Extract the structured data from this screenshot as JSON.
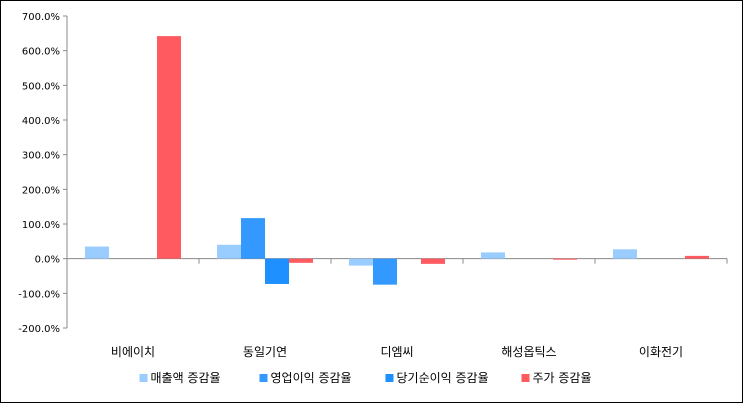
{
  "chart_data": {
    "type": "bar",
    "categories": [
      "비에이치",
      "동일기연",
      "디엠씨",
      "해성옵틱스",
      "이화전기"
    ],
    "series": [
      {
        "name": "매출액 증감율",
        "color": "#99ccff",
        "values": [
          35,
          40,
          -20,
          18,
          27
        ]
      },
      {
        "name": "영업이익 증감율",
        "color": "#3399ff",
        "values": [
          0,
          117,
          -75,
          0,
          0
        ]
      },
      {
        "name": "당기순이익 증감율",
        "color": "#1e90ff",
        "values": [
          0,
          -73,
          0,
          0,
          0
        ]
      },
      {
        "name": "주가 증감율",
        "color": "#ff5a5f",
        "values": [
          642,
          -12,
          -15,
          -3,
          8
        ]
      }
    ],
    "ylim": [
      -200,
      700
    ],
    "yticks": [
      -200,
      -100,
      0,
      100,
      200,
      300,
      400,
      500,
      600,
      700
    ],
    "ytick_labels": [
      "-200.0%",
      "-100.0%",
      "0.0%",
      "100.0%",
      "200.0%",
      "300.0%",
      "400.0%",
      "500.0%",
      "600.0%",
      "700.0%"
    ],
    "title": "",
    "xlabel": "",
    "ylabel": "",
    "legend_position": "bottom",
    "grid": false
  }
}
